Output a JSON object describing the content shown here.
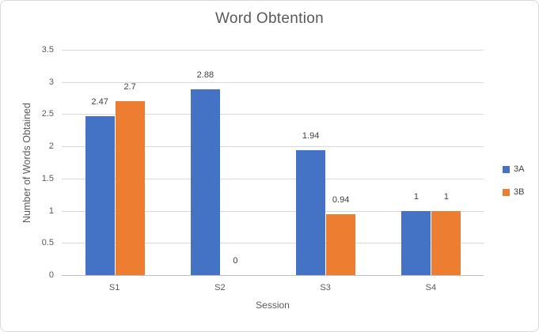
{
  "chart_data": {
    "type": "bar",
    "title": "Word Obtention",
    "xlabel": "Session",
    "ylabel": "Number of Words Obtained",
    "categories": [
      "S1",
      "S2",
      "S3",
      "S4"
    ],
    "series": [
      {
        "name": "3A",
        "color": "#4472C4",
        "values": [
          2.47,
          2.88,
          1.94,
          1
        ]
      },
      {
        "name": "3B",
        "color": "#ED7D31",
        "values": [
          2.7,
          0,
          0.94,
          1
        ]
      }
    ],
    "data_labels": [
      [
        "2.47",
        "2.88",
        "1.94",
        "1"
      ],
      [
        "2.7",
        "0",
        "0.94",
        "1"
      ]
    ],
    "ylim": [
      0,
      3.5
    ],
    "ytick_step": 0.5,
    "ytick_labels": [
      "0",
      "0.5",
      "1",
      "1.5",
      "2",
      "2.5",
      "3",
      "3.5"
    ],
    "grid": true,
    "legend_position": "right",
    "colors": {
      "gridline": "#D9D9D9",
      "axis_line": "#BFBFBF",
      "tick_text": "#595959",
      "title_text": "#595959",
      "data_label_text": "#404040",
      "chart_border": "#D9D9D9",
      "background": "#FFFFFF"
    }
  }
}
